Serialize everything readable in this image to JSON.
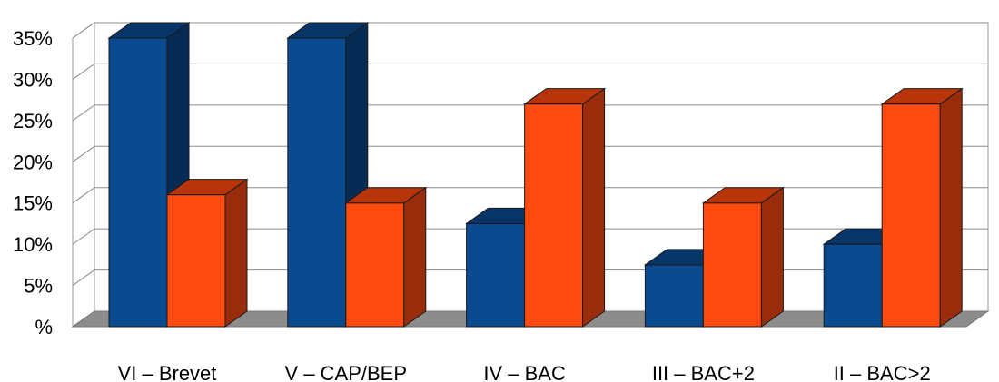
{
  "chart_data": {
    "type": "bar",
    "style": "3d-clustered",
    "categories": [
      "VI – Brevet",
      "V – CAP/BEP",
      "IV – BAC",
      "III – BAC+2",
      "II – BAC>2"
    ],
    "series": [
      {
        "values": [
          35,
          35,
          12.5,
          7.5,
          10
        ],
        "color": "#0a4a8f"
      },
      {
        "values": [
          16,
          15,
          27,
          15,
          27
        ],
        "color": "#ff4a10"
      }
    ],
    "y_ticks": [
      "%",
      "5%",
      "10%",
      "15%",
      "20%",
      "25%",
      "30%",
      "35%"
    ],
    "ylim": [
      0,
      35
    ],
    "y_step": 5,
    "grid": true,
    "legend": "none",
    "floor_color": "#8c8c8c",
    "title": "",
    "xlabel": "",
    "ylabel": ""
  }
}
